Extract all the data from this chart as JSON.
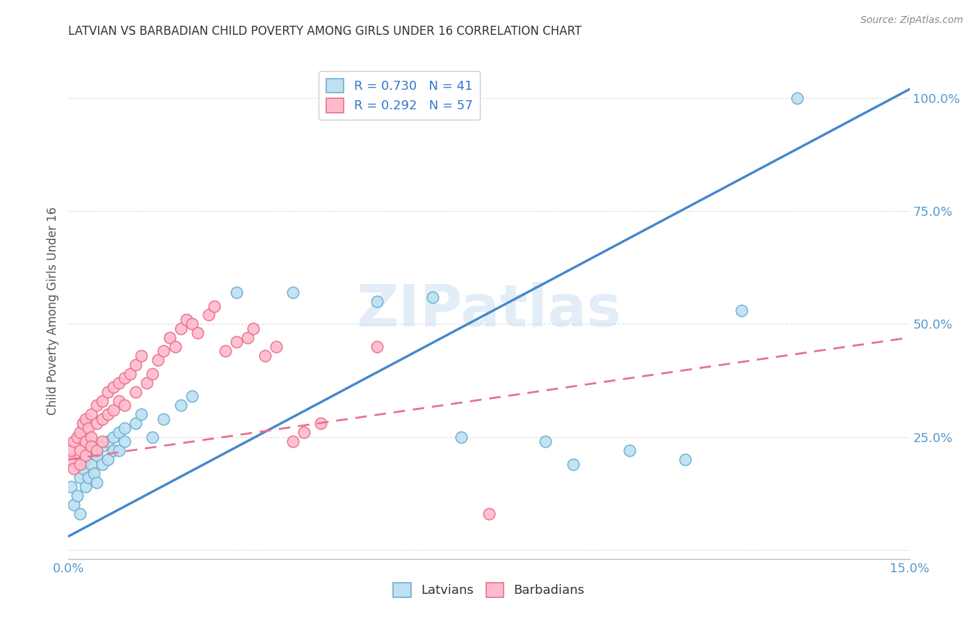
{
  "title": "LATVIAN VS BARBADIAN CHILD POVERTY AMONG GIRLS UNDER 16 CORRELATION CHART",
  "source": "Source: ZipAtlas.com",
  "ylabel": "Child Poverty Among Girls Under 16",
  "xlim": [
    0.0,
    0.15
  ],
  "ylim": [
    -0.02,
    1.08
  ],
  "xticks": [
    0.0,
    0.025,
    0.05,
    0.075,
    0.1,
    0.125,
    0.15
  ],
  "xticklabels": [
    "0.0%",
    "",
    "",
    "",
    "",
    "",
    "15.0%"
  ],
  "yticks": [
    0.0,
    0.25,
    0.5,
    0.75,
    1.0
  ],
  "yticklabels": [
    "",
    "25.0%",
    "50.0%",
    "75.0%",
    "100.0%"
  ],
  "latvian_fill": "#BEE0F0",
  "latvian_edge": "#6BAED6",
  "barbadian_fill": "#FFBBCC",
  "barbadian_edge": "#E8708A",
  "blue_line_color": "#4488CC",
  "pink_line_color": "#E87090",
  "watermark_color": "#C8DCF0",
  "title_color": "#333333",
  "tick_color": "#5599CC",
  "grid_color": "#DDDDDD",
  "source_color": "#888888",
  "legend_r_color": "#3377CC",
  "legend_n_color": "#33AA33",
  "latvians_label": "Latvians",
  "barbadians_label": "Barbadians",
  "legend_latvian_r": "R = 0.730",
  "legend_latvian_n": "N = 41",
  "legend_barbadian_r": "R = 0.292",
  "legend_barbadian_n": "N = 57",
  "lv_line_x0": 0.0,
  "lv_line_y0": 0.03,
  "lv_line_x1": 0.15,
  "lv_line_y1": 1.02,
  "bb_line_x0": 0.0,
  "bb_line_y0": 0.2,
  "bb_line_x1": 0.15,
  "bb_line_y1": 0.47,
  "lv_x": [
    0.0005,
    0.001,
    0.0015,
    0.002,
    0.002,
    0.0025,
    0.003,
    0.003,
    0.0035,
    0.004,
    0.004,
    0.0045,
    0.005,
    0.005,
    0.006,
    0.006,
    0.007,
    0.007,
    0.008,
    0.008,
    0.009,
    0.009,
    0.01,
    0.01,
    0.012,
    0.013,
    0.015,
    0.017,
    0.02,
    0.022,
    0.03,
    0.04,
    0.055,
    0.065,
    0.07,
    0.085,
    0.09,
    0.1,
    0.11,
    0.12,
    0.13
  ],
  "lv_y": [
    0.14,
    0.1,
    0.12,
    0.16,
    0.08,
    0.18,
    0.14,
    0.2,
    0.16,
    0.22,
    0.19,
    0.17,
    0.21,
    0.15,
    0.23,
    0.19,
    0.24,
    0.2,
    0.25,
    0.22,
    0.26,
    0.22,
    0.27,
    0.24,
    0.28,
    0.3,
    0.25,
    0.29,
    0.32,
    0.34,
    0.57,
    0.57,
    0.55,
    0.56,
    0.25,
    0.24,
    0.19,
    0.22,
    0.2,
    0.53,
    1.0
  ],
  "bb_x": [
    0.0003,
    0.0005,
    0.001,
    0.001,
    0.0015,
    0.002,
    0.002,
    0.002,
    0.0025,
    0.003,
    0.003,
    0.003,
    0.0035,
    0.004,
    0.004,
    0.004,
    0.005,
    0.005,
    0.005,
    0.006,
    0.006,
    0.006,
    0.007,
    0.007,
    0.008,
    0.008,
    0.009,
    0.009,
    0.01,
    0.01,
    0.011,
    0.012,
    0.012,
    0.013,
    0.014,
    0.015,
    0.016,
    0.017,
    0.018,
    0.019,
    0.02,
    0.021,
    0.022,
    0.023,
    0.025,
    0.026,
    0.028,
    0.03,
    0.032,
    0.033,
    0.035,
    0.037,
    0.04,
    0.042,
    0.045,
    0.055,
    0.075
  ],
  "bb_y": [
    0.2,
    0.22,
    0.24,
    0.18,
    0.25,
    0.26,
    0.22,
    0.19,
    0.28,
    0.24,
    0.29,
    0.21,
    0.27,
    0.3,
    0.25,
    0.23,
    0.32,
    0.28,
    0.22,
    0.33,
    0.29,
    0.24,
    0.35,
    0.3,
    0.36,
    0.31,
    0.37,
    0.33,
    0.38,
    0.32,
    0.39,
    0.41,
    0.35,
    0.43,
    0.37,
    0.39,
    0.42,
    0.44,
    0.47,
    0.45,
    0.49,
    0.51,
    0.5,
    0.48,
    0.52,
    0.54,
    0.44,
    0.46,
    0.47,
    0.49,
    0.43,
    0.45,
    0.24,
    0.26,
    0.28,
    0.45,
    0.08
  ]
}
